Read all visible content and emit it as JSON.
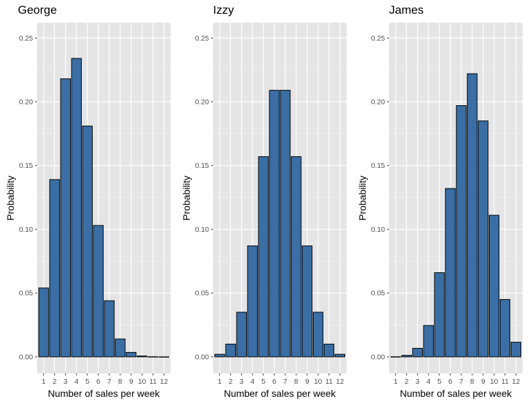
{
  "chart_data": [
    {
      "type": "bar",
      "title": "George",
      "xlabel": "Number of sales per week",
      "ylabel": "Probability",
      "categories": [
        "1",
        "2",
        "3",
        "4",
        "5",
        "6",
        "7",
        "8",
        "9",
        "10",
        "11",
        "12"
      ],
      "values": [
        0.054,
        0.139,
        0.218,
        0.234,
        0.181,
        0.103,
        0.044,
        0.014,
        0.0035,
        0.0007,
        0.0001,
        1e-05
      ],
      "yticks": [
        "0.00",
        "0.05",
        "0.10",
        "0.15",
        "0.20",
        "0.25"
      ],
      "ylim": [
        -0.013,
        0.262
      ],
      "bar_color": "#3a6ea5",
      "panel_background": "#e5e5e5",
      "grid": true
    },
    {
      "type": "bar",
      "title": "Izzy",
      "xlabel": "Number of sales per week",
      "ylabel": "Probability",
      "categories": [
        "1",
        "2",
        "3",
        "4",
        "5",
        "6",
        "7",
        "8",
        "9",
        "10",
        "11",
        "12"
      ],
      "values": [
        0.002,
        0.01,
        0.035,
        0.087,
        0.157,
        0.209,
        0.209,
        0.157,
        0.087,
        0.035,
        0.01,
        0.002
      ],
      "yticks": [
        "0.00",
        "0.05",
        "0.10",
        "0.15",
        "0.20",
        "0.25"
      ],
      "ylim": [
        -0.013,
        0.262
      ],
      "bar_color": "#3a6ea5",
      "panel_background": "#e5e5e5",
      "grid": true
    },
    {
      "type": "bar",
      "title": "James",
      "xlabel": "Number of sales per week",
      "ylabel": "Probability",
      "categories": [
        "1",
        "2",
        "3",
        "4",
        "5",
        "6",
        "7",
        "8",
        "9",
        "10",
        "11",
        "12"
      ],
      "values": [
        0.0001,
        0.0012,
        0.0067,
        0.0246,
        0.066,
        0.132,
        0.197,
        0.222,
        0.185,
        0.111,
        0.045,
        0.0115
      ],
      "yticks": [
        "0.00",
        "0.05",
        "0.10",
        "0.15",
        "0.20",
        "0.25"
      ],
      "ylim": [
        -0.013,
        0.262
      ],
      "bar_color": "#3a6ea5",
      "panel_background": "#e5e5e5",
      "grid": true
    }
  ]
}
